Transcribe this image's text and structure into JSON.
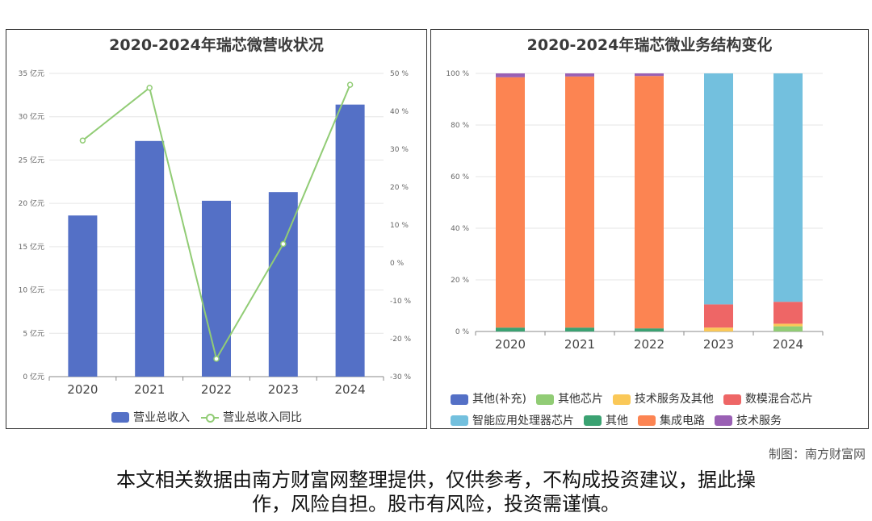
{
  "charts": {
    "left_title": "2020-2024年瑞芯微营收状况",
    "right_title": "2020-2024年瑞芯微业务结构变化"
  },
  "chart_data": [
    {
      "type": "bar",
      "title": "2020-2024年瑞芯微营收状况",
      "categories": [
        "2020",
        "2021",
        "2022",
        "2023",
        "2024"
      ],
      "y_left": {
        "min": 0,
        "max": 35,
        "step": 5,
        "unit": "亿元",
        "tick_labels": [
          "0 亿元",
          "5 亿元",
          "10 亿元",
          "15 亿元",
          "20 亿元",
          "25 亿元",
          "30 亿元",
          "35 亿元"
        ]
      },
      "y_right": {
        "min": -30,
        "max": 50,
        "step": 10,
        "unit": "%",
        "tick_labels": [
          "-30 %",
          "-20 %",
          "-10 %",
          "0 %",
          "10 %",
          "20 %",
          "30 %",
          "40 %",
          "50 %"
        ]
      },
      "series": [
        {
          "name": "营业总收入",
          "type": "bar",
          "axis": "left",
          "color": "#5470c6",
          "values": [
            18.6,
            27.2,
            20.3,
            21.3,
            31.4
          ]
        },
        {
          "name": "营业总收入同比",
          "type": "line",
          "axis": "right",
          "color": "#91cc75",
          "values": [
            32.3,
            46.2,
            -25.3,
            5.0,
            47.0
          ]
        }
      ],
      "legend_position": "bottom"
    },
    {
      "type": "bar",
      "stacked": true,
      "title": "2020-2024年瑞芯微业务结构变化",
      "categories": [
        "2020",
        "2021",
        "2022",
        "2023",
        "2024"
      ],
      "y": {
        "min": 0,
        "max": 100,
        "step": 20,
        "unit": "%",
        "tick_labels": [
          "0 %",
          "20 %",
          "40 %",
          "60 %",
          "80 %",
          "100 %"
        ]
      },
      "series": [
        {
          "name": "其他(补充)",
          "color": "#5470c6",
          "values": [
            0,
            0,
            0,
            0,
            0
          ]
        },
        {
          "name": "其他芯片",
          "color": "#91cc75",
          "values": [
            0,
            0,
            0,
            0,
            2.0
          ]
        },
        {
          "name": "技术服务及其他",
          "color": "#fac858",
          "values": [
            0,
            0,
            0,
            1.5,
            1.0
          ]
        },
        {
          "name": "数模混合芯片",
          "color": "#ee6666",
          "values": [
            0,
            0,
            0,
            9.0,
            8.5
          ]
        },
        {
          "name": "智能应用处理器芯片",
          "color": "#73c0de",
          "values": [
            0,
            0,
            0,
            89.5,
            88.5
          ]
        },
        {
          "name": "其他",
          "color": "#3ba272",
          "values": [
            1.5,
            1.5,
            1.2,
            0,
            0
          ]
        },
        {
          "name": "集成电路",
          "color": "#fc8452",
          "values": [
            97.0,
            97.3,
            97.8,
            0,
            0
          ]
        },
        {
          "name": "技术服务",
          "color": "#9a60b4",
          "values": [
            1.5,
            1.2,
            1.0,
            0,
            0
          ]
        }
      ],
      "legend_position": "bottom"
    }
  ],
  "credit": "制图：南方财富网",
  "disclaimer_line1": "本文相关数据由南方财富网整理提供，仅供参考，不构成投资建议，据此操",
  "disclaimer_line2": "作，风险自担。股市有风险，投资需谨慎。"
}
